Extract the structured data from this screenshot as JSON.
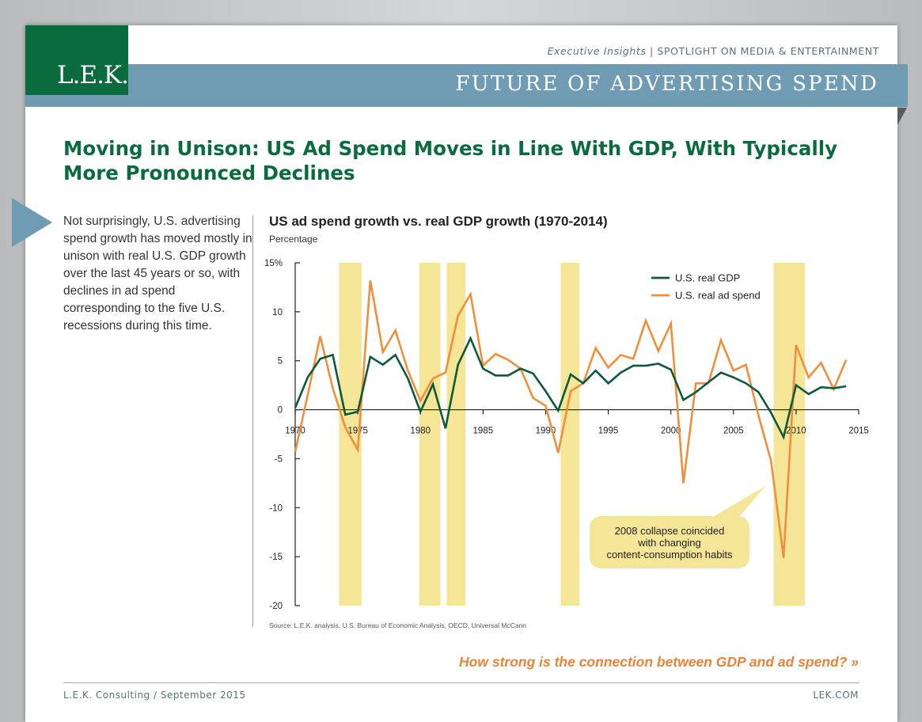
{
  "header": {
    "logo_text": "L.E.K.",
    "exec_italic": "Executive Insights",
    "exec_rest": " | SPOTLIGHT ON MEDIA & ENTERTAINMENT",
    "banner_title": "FUTURE OF ADVERTISING SPEND"
  },
  "headline": "Moving in Unison: US Ad Spend Moves in Line With GDP, With Typically More Pronounced Declines",
  "intro_text": "Not surprisingly, U.S. advertising spend growth has moved mostly in unison with real U.S. GDP growth over the last 45 years or so, with declines in ad spend corresponding to the five U.S. recessions during this time.",
  "chart_data": {
    "type": "line",
    "title": "US ad spend growth vs. real GDP growth (1970-2014)",
    "ylabel": "Percentage",
    "xlim": [
      1970,
      2015
    ],
    "ylim": [
      -20,
      15
    ],
    "x_ticks": [
      "1970",
      "1975",
      "1980",
      "1985",
      "1990",
      "1995",
      "2000",
      "2005",
      "2010",
      "2015"
    ],
    "y_ticks": [
      "15%",
      "10",
      "5",
      "0",
      "-5",
      "-10",
      "-15",
      "-20"
    ],
    "legend_position": "top-right",
    "recessions": [
      [
        1973.5,
        1975.3
      ],
      [
        1979.9,
        1981.6
      ],
      [
        1982.1,
        1983.6
      ],
      [
        1991.2,
        1992.7
      ],
      [
        2008.2,
        2010.7
      ]
    ],
    "x": [
      1970,
      1971,
      1972,
      1973,
      1974,
      1975,
      1976,
      1977,
      1978,
      1979,
      1980,
      1981,
      1982,
      1983,
      1984,
      1985,
      1986,
      1987,
      1988,
      1989,
      1990,
      1991,
      1992,
      1993,
      1994,
      1995,
      1996,
      1997,
      1998,
      1999,
      2000,
      2001,
      2002,
      2003,
      2004,
      2005,
      2006,
      2007,
      2008,
      2009,
      2010,
      2011,
      2012,
      2013,
      2014,
      2015
    ],
    "series": [
      {
        "name": "U.S. real GDP",
        "color": "#0d5a3a",
        "values": [
          0.2,
          3.3,
          5.2,
          5.6,
          -0.5,
          -0.2,
          5.4,
          4.6,
          5.6,
          3.2,
          -0.2,
          2.6,
          -1.9,
          4.6,
          7.3,
          4.2,
          3.5,
          3.5,
          4.2,
          3.7,
          1.9,
          -0.1,
          3.6,
          2.7,
          4.0,
          2.7,
          3.8,
          4.5,
          4.5,
          4.7,
          4.1,
          1.0,
          1.8,
          2.8,
          3.8,
          3.3,
          2.7,
          1.8,
          -0.3,
          -2.8,
          2.5,
          1.6,
          2.3,
          2.2,
          2.4,
          null
        ]
      },
      {
        "name": "U.S. real ad spend",
        "color": "#ef8f3c",
        "values": [
          -4.3,
          1.5,
          7.5,
          2.2,
          -1.8,
          -4.1,
          13.2,
          5.9,
          8.1,
          4.0,
          0.9,
          3.2,
          3.8,
          9.6,
          11.8,
          4.5,
          5.7,
          5.1,
          4.2,
          1.2,
          0.4,
          -4.4,
          1.9,
          2.7,
          6.3,
          4.3,
          5.6,
          5.2,
          9.1,
          6.0,
          8.8,
          -7.5,
          2.7,
          2.7,
          7.1,
          4.0,
          4.6,
          -0.6,
          -5.2,
          -15.1,
          6.6,
          3.3,
          4.8,
          2.1,
          5.1,
          null
        ]
      }
    ]
  },
  "callout_text": "2008 collapse coincided\nwith changing\ncontent-consumption habits",
  "source_text": "Source: L.E.K. analysis, U.S. Bureau of Economic Analysis, OECD, Universal McCann",
  "cta_text": "How strong is the connection between GDP and ad spend? »",
  "footer": {
    "left": "L.E.K. Consulting / September 2015",
    "right": "LEK.COM"
  },
  "colors": {
    "brand_green": "#0a6b3f",
    "banner_blue": "#6f9cb2",
    "recession_band": "#f5e597",
    "cta_orange": "#e8833a"
  }
}
